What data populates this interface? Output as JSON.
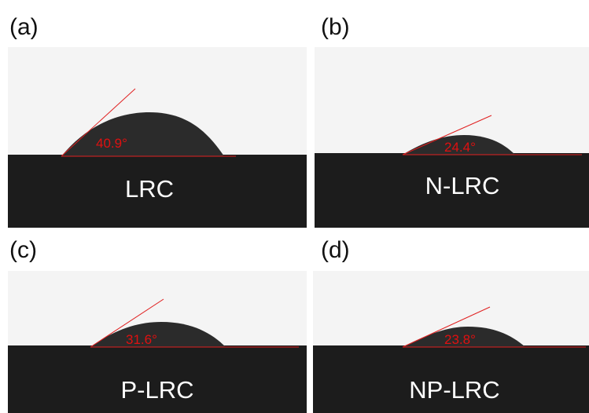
{
  "panels": [
    {
      "label": "(a)",
      "angle": "40.9°",
      "sample": "LRC"
    },
    {
      "label": "(b)",
      "angle": "24.4°",
      "sample": "N-LRC"
    },
    {
      "label": "(c)",
      "angle": "31.6°",
      "sample": "P-LRC"
    },
    {
      "label": "(d)",
      "angle": "23.8°",
      "sample": "NP-LRC"
    }
  ]
}
